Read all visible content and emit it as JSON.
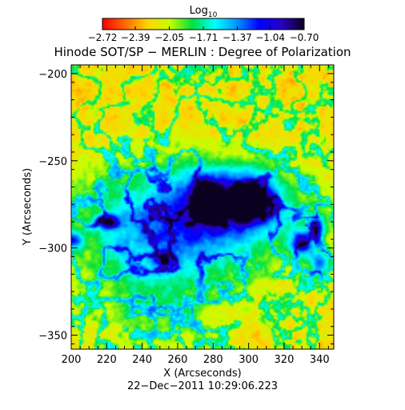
{
  "chart_data": {
    "type": "heatmap",
    "title": "Hinode SOT/SP − MERLIN : Degree of Polarization",
    "xlabel": "X (Arcseconds)",
    "ylabel": "Y (Arcseconds)",
    "xlim": [
      200,
      348
    ],
    "ylim": [
      -358,
      -195
    ],
    "xticks": [
      "200",
      "220",
      "240",
      "260",
      "280",
      "300",
      "320",
      "340"
    ],
    "yticks": [
      "−200",
      "−250",
      "−300",
      "−350"
    ],
    "xtick_values": [
      200,
      220,
      240,
      260,
      280,
      300,
      320,
      340
    ],
    "ytick_values": [
      -200,
      -250,
      -300,
      -350
    ],
    "colorbar": {
      "title": "Log",
      "title_subscript": "10",
      "scale": "log10",
      "tick_labels": [
        "−2.72",
        "−2.39",
        "−2.05",
        "−1.71",
        "−1.37",
        "−1.04",
        "−0.70"
      ],
      "tick_values": [
        -2.72,
        -2.39,
        -2.05,
        -1.71,
        -1.37,
        -1.04,
        -0.7
      ],
      "range": [
        -2.72,
        -0.7
      ],
      "colormap": [
        "#ff0000",
        "#ff6a00",
        "#ffd400",
        "#c8ff00",
        "#00e040",
        "#00ffff",
        "#0096ff",
        "#0000ff",
        "#2a00c8",
        "#0a0020"
      ]
    },
    "features": [
      {
        "kind": "sunspot umbra",
        "x": 276,
        "y": -272,
        "value": -0.75
      },
      {
        "kind": "sunspot umbra",
        "x": 301,
        "y": -273,
        "value": -0.72
      },
      {
        "kind": "strong-polarization patch",
        "x": 221,
        "y": -285,
        "value": -1.1
      },
      {
        "kind": "strong-polarization patch",
        "x": 330,
        "y": -297,
        "value": -1.0
      }
    ],
    "grid": false,
    "legend": "none"
  },
  "footer": {
    "timestamp": "22−Dec−2011 10:29:06.223"
  }
}
